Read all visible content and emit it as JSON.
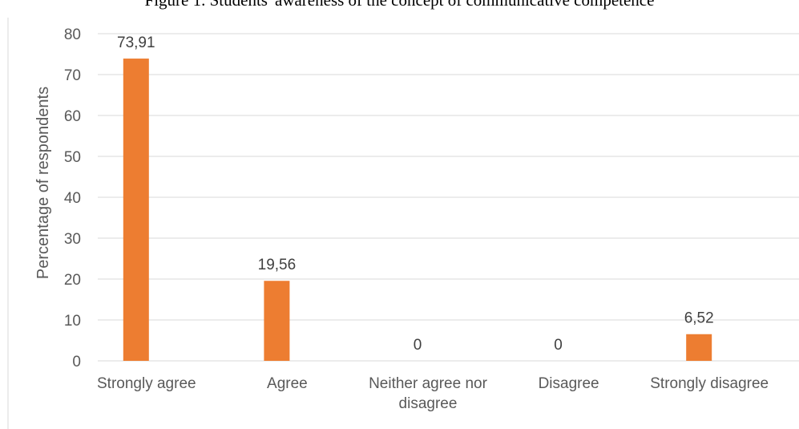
{
  "chart_data": {
    "type": "bar",
    "title": "Figure 1. Students' awareness of the concept of communicative competence",
    "ylabel": "Percentage of respondents",
    "xlabel": "",
    "categories": [
      "Strongly agree",
      "Agree",
      "Neither agree nor disagree",
      "Disagree",
      "Strongly disagree"
    ],
    "category_lines": [
      [
        "Strongly agree"
      ],
      [
        "Agree"
      ],
      [
        "Neither agree nor",
        "disagree"
      ],
      [
        "Disagree"
      ],
      [
        "Strongly disagree"
      ]
    ],
    "values": [
      73.91,
      19.56,
      0,
      0,
      6.52
    ],
    "data_labels": [
      "73,91",
      "19,56",
      "0",
      "0",
      "6,52"
    ],
    "ylim": [
      0,
      80
    ],
    "yticks": [
      0,
      10,
      20,
      30,
      40,
      50,
      60,
      70,
      80
    ],
    "grid": true,
    "bar_color": "#ED7D31",
    "grid_color": "#D9D9D9"
  }
}
